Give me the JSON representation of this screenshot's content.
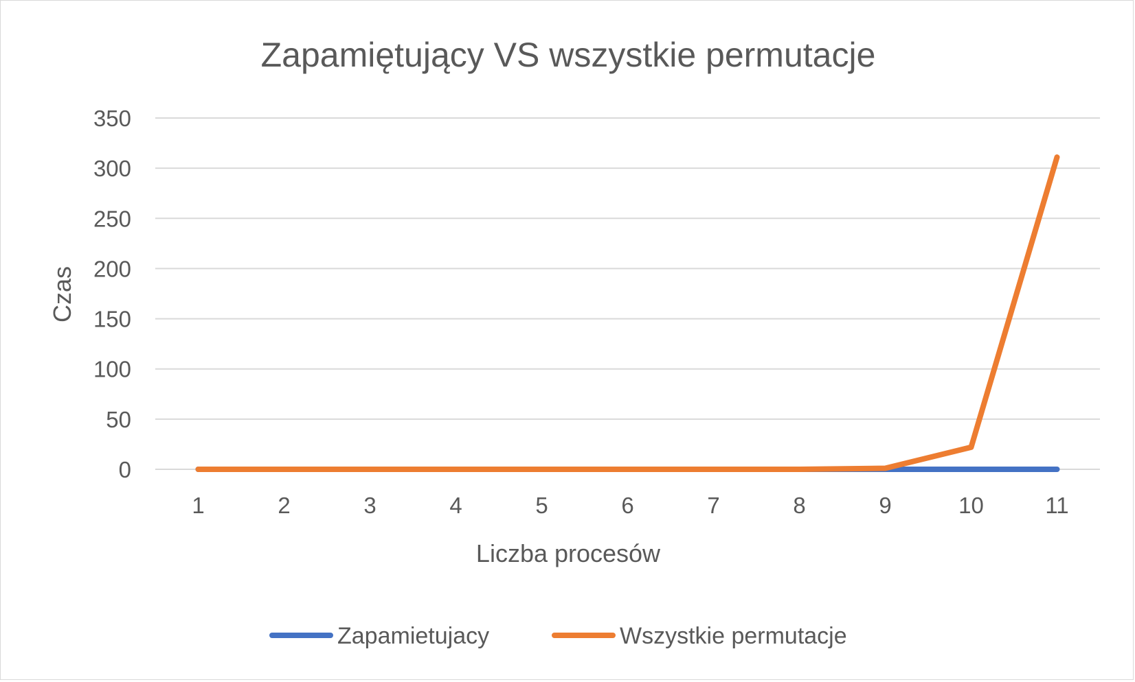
{
  "chart_data": {
    "type": "line",
    "title": "Zapamiętujący VS wszystkie permutacje",
    "xlabel": "Liczba procesów",
    "ylabel": "Czas",
    "categories": [
      "1",
      "2",
      "3",
      "4",
      "5",
      "6",
      "7",
      "8",
      "9",
      "10",
      "11"
    ],
    "ylim": [
      0,
      350
    ],
    "yticks": [
      "0",
      "50",
      "100",
      "150",
      "200",
      "250",
      "300",
      "350"
    ],
    "grid": true,
    "legend_position": "bottom",
    "series": [
      {
        "name": "Zapamietujacy",
        "color": "#4472c4",
        "values": [
          0,
          0,
          0,
          0,
          0,
          0,
          0,
          0,
          0,
          0,
          0
        ]
      },
      {
        "name": "Wszystkie permutacje",
        "color": "#ed7d31",
        "values": [
          0,
          0,
          0,
          0,
          0,
          0,
          0,
          0,
          1,
          22,
          311
        ]
      }
    ]
  }
}
